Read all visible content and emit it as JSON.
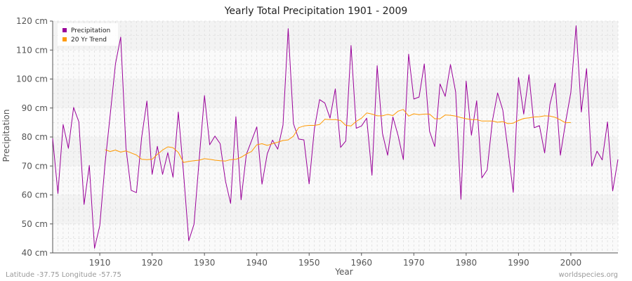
{
  "chart_data": {
    "type": "line",
    "title": "Yearly Total Precipitation 1901 - 2009",
    "xlabel": "Year",
    "ylabel": "Precipitation",
    "xlim": [
      1901,
      2009
    ],
    "ylim": [
      40,
      120
    ],
    "y_unit": "cm",
    "y_ticks": [
      40,
      50,
      60,
      70,
      80,
      90,
      100,
      110,
      120
    ],
    "x_ticks": [
      1910,
      1920,
      1930,
      1940,
      1950,
      1960,
      1970,
      1980,
      1990,
      2000
    ],
    "y_tick_labels": [
      "40 cm",
      "50 cm",
      "60 cm",
      "70 cm",
      "80 cm",
      "90 cm",
      "100 cm",
      "110 cm",
      "120 cm"
    ],
    "x_tick_labels": [
      "1910",
      "1920",
      "1930",
      "1940",
      "1950",
      "1960",
      "1970",
      "1980",
      "1990",
      "2000"
    ],
    "legend": {
      "position": "top-left",
      "entries": [
        "Precipitation",
        "20 Yr Trend"
      ]
    },
    "series": [
      {
        "name": "Precipitation",
        "color": "#990099",
        "x": [
          1901,
          1902,
          1903,
          1904,
          1905,
          1906,
          1907,
          1908,
          1909,
          1910,
          1911,
          1912,
          1913,
          1914,
          1915,
          1916,
          1917,
          1918,
          1919,
          1920,
          1921,
          1922,
          1923,
          1924,
          1925,
          1926,
          1927,
          1928,
          1929,
          1930,
          1931,
          1932,
          1933,
          1934,
          1935,
          1936,
          1937,
          1938,
          1939,
          1940,
          1941,
          1942,
          1943,
          1944,
          1945,
          1946,
          1947,
          1948,
          1949,
          1950,
          1951,
          1952,
          1953,
          1954,
          1955,
          1956,
          1957,
          1958,
          1959,
          1960,
          1961,
          1962,
          1963,
          1964,
          1965,
          1966,
          1967,
          1968,
          1969,
          1970,
          1971,
          1972,
          1973,
          1974,
          1975,
          1976,
          1977,
          1978,
          1979,
          1980,
          1981,
          1982,
          1983,
          1984,
          1985,
          1986,
          1987,
          1988,
          1989,
          1990,
          1991,
          1992,
          1993,
          1994,
          1995,
          1996,
          1997,
          1998,
          1999,
          2000,
          2001,
          2002,
          2003,
          2004,
          2005,
          2006,
          2007,
          2008,
          2009
        ],
        "values": [
          79.5,
          60.5,
          84.3,
          76.1,
          90.2,
          85.2,
          56.7,
          70.2,
          41.6,
          49.4,
          70.6,
          87.8,
          105.2,
          114.5,
          76.2,
          61.6,
          60.8,
          79.8,
          92.4,
          67.1,
          76.8,
          67.1,
          74.6,
          66.1,
          88.6,
          67.8,
          44.2,
          49.9,
          72.4,
          94.3,
          77.3,
          80.3,
          77.7,
          64.9,
          57.1,
          87.0,
          58.3,
          74.0,
          78.7,
          83.5,
          63.7,
          74.2,
          78.9,
          75.8,
          84.1,
          117.4,
          84.6,
          79.3,
          79.0,
          63.8,
          82.8,
          92.9,
          91.7,
          86.5,
          96.6,
          76.4,
          78.6,
          111.6,
          83.0,
          83.8,
          86.5,
          66.8,
          104.6,
          81.3,
          73.7,
          86.9,
          80.5,
          72.2,
          108.6,
          93.1,
          93.8,
          105.2,
          82.0,
          76.7,
          98.3,
          94.0,
          105.0,
          95.5,
          58.5,
          99.3,
          80.6,
          92.5,
          65.9,
          68.6,
          85.4,
          95.2,
          89.3,
          75.3,
          60.9,
          100.5,
          87.9,
          101.5,
          83.2,
          83.9,
          74.5,
          91.2,
          98.6,
          73.7,
          85.2,
          95.4,
          118.4,
          88.6,
          103.6,
          69.9,
          75.1,
          72.1,
          85.2,
          61.4,
          72.3
        ]
      },
      {
        "name": "20 Yr Trend",
        "color": "#ff9900",
        "x": [
          1911,
          1912,
          1913,
          1914,
          1915,
          1916,
          1917,
          1918,
          1919,
          1920,
          1921,
          1922,
          1923,
          1924,
          1925,
          1926,
          1927,
          1928,
          1929,
          1930,
          1931,
          1932,
          1933,
          1934,
          1935,
          1936,
          1937,
          1938,
          1939,
          1940,
          1941,
          1942,
          1943,
          1944,
          1945,
          1946,
          1947,
          1948,
          1949,
          1950,
          1951,
          1952,
          1953,
          1954,
          1955,
          1956,
          1957,
          1958,
          1959,
          1960,
          1961,
          1962,
          1963,
          1964,
          1965,
          1966,
          1967,
          1968,
          1969,
          1970,
          1971,
          1972,
          1973,
          1974,
          1975,
          1976,
          1977,
          1978,
          1979,
          1980,
          1981,
          1982,
          1983,
          1984,
          1985,
          1986,
          1987,
          1988,
          1989,
          1990,
          1991,
          1992,
          1993,
          1994,
          1995,
          1996,
          1997,
          1998,
          1999,
          2000
        ],
        "values": [
          75.6,
          75.0,
          75.5,
          74.8,
          75.2,
          74.5,
          73.8,
          72.3,
          72.2,
          72.3,
          74.0,
          75.5,
          76.6,
          76.3,
          74.7,
          71.2,
          71.6,
          71.8,
          72.0,
          72.5,
          72.3,
          72.0,
          71.8,
          71.7,
          72.2,
          72.3,
          73.0,
          74.1,
          75.0,
          77.3,
          77.7,
          77.1,
          77.7,
          78.2,
          78.8,
          79.0,
          80.3,
          83.2,
          83.8,
          84.0,
          84.0,
          84.3,
          86.1,
          86.0,
          86.0,
          85.7,
          84.0,
          83.8,
          85.4,
          86.5,
          88.3,
          87.9,
          87.3,
          87.3,
          87.8,
          87.4,
          88.9,
          89.5,
          87.2,
          88.0,
          87.7,
          87.9,
          87.9,
          86.3,
          86.3,
          87.6,
          87.5,
          87.2,
          86.7,
          86.3,
          86.0,
          86.0,
          85.5,
          85.5,
          85.5,
          85.1,
          85.3,
          84.6,
          84.8,
          85.7,
          86.4,
          86.6,
          86.9,
          87.0,
          87.3,
          87.2,
          86.8,
          85.9,
          84.9,
          85.0
        ]
      }
    ]
  },
  "footer": {
    "left": "Latitude -37.75 Longitude -57.75",
    "right": "worldspecies.org"
  }
}
